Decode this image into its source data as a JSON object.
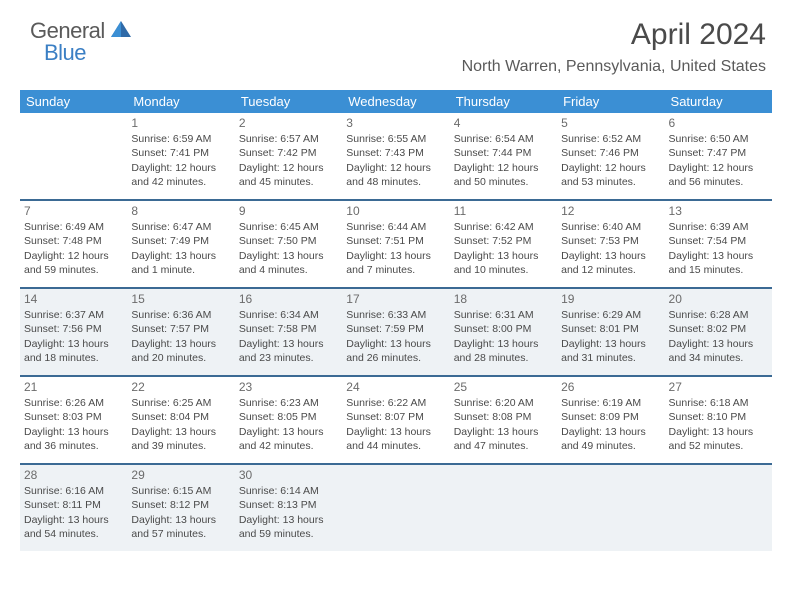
{
  "brand": {
    "general": "General",
    "blue": "Blue"
  },
  "title": "April 2024",
  "location": "North Warren, Pennsylvania, United States",
  "dayNames": [
    "Sunday",
    "Monday",
    "Tuesday",
    "Wednesday",
    "Thursday",
    "Friday",
    "Saturday"
  ],
  "colors": {
    "header_bg": "#3b8fd4",
    "header_text": "#ffffff",
    "week_border": "#3b6a94",
    "shaded_bg": "#eef2f5",
    "text": "#4a4a4a",
    "brand_blue": "#3b7fc4"
  },
  "weeks": [
    [
      {
        "day": null
      },
      {
        "day": 1,
        "sunrise": "6:59 AM",
        "sunset": "7:41 PM",
        "daylight": "12 hours and 42 minutes."
      },
      {
        "day": 2,
        "sunrise": "6:57 AM",
        "sunset": "7:42 PM",
        "daylight": "12 hours and 45 minutes."
      },
      {
        "day": 3,
        "sunrise": "6:55 AM",
        "sunset": "7:43 PM",
        "daylight": "12 hours and 48 minutes."
      },
      {
        "day": 4,
        "sunrise": "6:54 AM",
        "sunset": "7:44 PM",
        "daylight": "12 hours and 50 minutes."
      },
      {
        "day": 5,
        "sunrise": "6:52 AM",
        "sunset": "7:46 PM",
        "daylight": "12 hours and 53 minutes."
      },
      {
        "day": 6,
        "sunrise": "6:50 AM",
        "sunset": "7:47 PM",
        "daylight": "12 hours and 56 minutes."
      }
    ],
    [
      {
        "day": 7,
        "sunrise": "6:49 AM",
        "sunset": "7:48 PM",
        "daylight": "12 hours and 59 minutes."
      },
      {
        "day": 8,
        "sunrise": "6:47 AM",
        "sunset": "7:49 PM",
        "daylight": "13 hours and 1 minute."
      },
      {
        "day": 9,
        "sunrise": "6:45 AM",
        "sunset": "7:50 PM",
        "daylight": "13 hours and 4 minutes."
      },
      {
        "day": 10,
        "sunrise": "6:44 AM",
        "sunset": "7:51 PM",
        "daylight": "13 hours and 7 minutes."
      },
      {
        "day": 11,
        "sunrise": "6:42 AM",
        "sunset": "7:52 PM",
        "daylight": "13 hours and 10 minutes."
      },
      {
        "day": 12,
        "sunrise": "6:40 AM",
        "sunset": "7:53 PM",
        "daylight": "13 hours and 12 minutes."
      },
      {
        "day": 13,
        "sunrise": "6:39 AM",
        "sunset": "7:54 PM",
        "daylight": "13 hours and 15 minutes."
      }
    ],
    [
      {
        "day": 14,
        "sunrise": "6:37 AM",
        "sunset": "7:56 PM",
        "daylight": "13 hours and 18 minutes."
      },
      {
        "day": 15,
        "sunrise": "6:36 AM",
        "sunset": "7:57 PM",
        "daylight": "13 hours and 20 minutes."
      },
      {
        "day": 16,
        "sunrise": "6:34 AM",
        "sunset": "7:58 PM",
        "daylight": "13 hours and 23 minutes."
      },
      {
        "day": 17,
        "sunrise": "6:33 AM",
        "sunset": "7:59 PM",
        "daylight": "13 hours and 26 minutes."
      },
      {
        "day": 18,
        "sunrise": "6:31 AM",
        "sunset": "8:00 PM",
        "daylight": "13 hours and 28 minutes."
      },
      {
        "day": 19,
        "sunrise": "6:29 AM",
        "sunset": "8:01 PM",
        "daylight": "13 hours and 31 minutes."
      },
      {
        "day": 20,
        "sunrise": "6:28 AM",
        "sunset": "8:02 PM",
        "daylight": "13 hours and 34 minutes."
      }
    ],
    [
      {
        "day": 21,
        "sunrise": "6:26 AM",
        "sunset": "8:03 PM",
        "daylight": "13 hours and 36 minutes."
      },
      {
        "day": 22,
        "sunrise": "6:25 AM",
        "sunset": "8:04 PM",
        "daylight": "13 hours and 39 minutes."
      },
      {
        "day": 23,
        "sunrise": "6:23 AM",
        "sunset": "8:05 PM",
        "daylight": "13 hours and 42 minutes."
      },
      {
        "day": 24,
        "sunrise": "6:22 AM",
        "sunset": "8:07 PM",
        "daylight": "13 hours and 44 minutes."
      },
      {
        "day": 25,
        "sunrise": "6:20 AM",
        "sunset": "8:08 PM",
        "daylight": "13 hours and 47 minutes."
      },
      {
        "day": 26,
        "sunrise": "6:19 AM",
        "sunset": "8:09 PM",
        "daylight": "13 hours and 49 minutes."
      },
      {
        "day": 27,
        "sunrise": "6:18 AM",
        "sunset": "8:10 PM",
        "daylight": "13 hours and 52 minutes."
      }
    ],
    [
      {
        "day": 28,
        "sunrise": "6:16 AM",
        "sunset": "8:11 PM",
        "daylight": "13 hours and 54 minutes."
      },
      {
        "day": 29,
        "sunrise": "6:15 AM",
        "sunset": "8:12 PM",
        "daylight": "13 hours and 57 minutes."
      },
      {
        "day": 30,
        "sunrise": "6:14 AM",
        "sunset": "8:13 PM",
        "daylight": "13 hours and 59 minutes."
      },
      {
        "day": null
      },
      {
        "day": null
      },
      {
        "day": null
      },
      {
        "day": null
      }
    ]
  ],
  "shadedWeeks": [
    2,
    4
  ],
  "labels": {
    "sunrise": "Sunrise:",
    "sunset": "Sunset:",
    "daylight": "Daylight:"
  }
}
